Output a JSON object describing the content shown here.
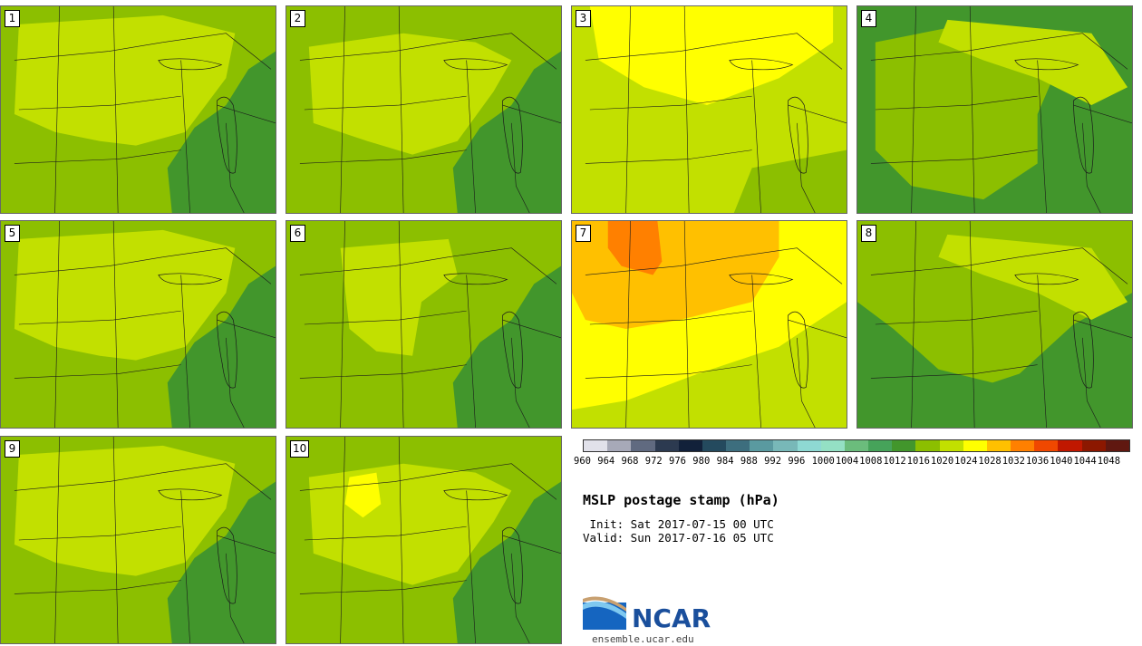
{
  "title": "MSLP postage stamp (hPa)",
  "init": " Init: Sat 2017-07-15 00 UTC",
  "valid": "Valid: Sun 2017-07-16 05 UTC",
  "logo_text": "NCAR",
  "url": "ensemble.ucar.edu",
  "colorbar": {
    "ticks": [
      "960",
      "964",
      "968",
      "972",
      "976",
      "980",
      "984",
      "988",
      "992",
      "996",
      "1000",
      "1004",
      "1008",
      "1012",
      "1016",
      "1020",
      "1024",
      "1028",
      "1032",
      "1036",
      "1040",
      "1044",
      "1048"
    ],
    "colors": [
      "#e1e1ea",
      "#a7a9b8",
      "#606a80",
      "#2c3a50",
      "#12213a",
      "#244a5e",
      "#3d6e7e",
      "#5a9aa0",
      "#78b8b8",
      "#8ed9d3",
      "#94e0c4",
      "#6bbc7c",
      "#46a35a",
      "#42962c",
      "#8cbf00",
      "#c2e000",
      "#ffff00",
      "#ffc000",
      "#ff8000",
      "#f04800",
      "#c01800",
      "#8c1800",
      "#601810"
    ]
  },
  "panels": [
    {
      "id": "1",
      "base": "#8cbf00",
      "blobs": [
        {
          "color": "#c2e000",
          "shape": "A"
        },
        {
          "color": "#42962c",
          "shape": "E"
        }
      ]
    },
    {
      "id": "2",
      "base": "#8cbf00",
      "blobs": [
        {
          "color": "#c2e000",
          "shape": "B"
        },
        {
          "color": "#42962c",
          "shape": "E"
        }
      ]
    },
    {
      "id": "3",
      "base": "#c2e000",
      "blobs": [
        {
          "color": "#ffff00",
          "shape": "N"
        },
        {
          "color": "#8cbf00",
          "shape": "S"
        }
      ]
    },
    {
      "id": "4",
      "base": "#42962c",
      "blobs": [
        {
          "color": "#8cbf00",
          "shape": "C"
        },
        {
          "color": "#c2e000",
          "shape": "K"
        }
      ]
    },
    {
      "id": "5",
      "base": "#8cbf00",
      "blobs": [
        {
          "color": "#c2e000",
          "shape": "A"
        },
        {
          "color": "#42962c",
          "shape": "E"
        }
      ]
    },
    {
      "id": "6",
      "base": "#8cbf00",
      "blobs": [
        {
          "color": "#c2e000",
          "shape": "D"
        },
        {
          "color": "#42962c",
          "shape": "E"
        }
      ]
    },
    {
      "id": "7",
      "base": "#c2e000",
      "blobs": [
        {
          "color": "#ffff00",
          "shape": "M"
        },
        {
          "color": "#ffc000",
          "shape": "O"
        },
        {
          "color": "#ff8000",
          "shape": "P"
        }
      ]
    },
    {
      "id": "8",
      "base": "#8cbf00",
      "blobs": [
        {
          "color": "#42962c",
          "shape": "F"
        },
        {
          "color": "#c2e000",
          "shape": "K"
        }
      ]
    },
    {
      "id": "9",
      "base": "#8cbf00",
      "blobs": [
        {
          "color": "#c2e000",
          "shape": "A"
        },
        {
          "color": "#42962c",
          "shape": "E"
        }
      ]
    },
    {
      "id": "10",
      "base": "#8cbf00",
      "blobs": [
        {
          "color": "#c2e000",
          "shape": "B"
        },
        {
          "color": "#ffff00",
          "shape": "Q"
        },
        {
          "color": "#42962c",
          "shape": "E"
        }
      ]
    }
  ]
}
